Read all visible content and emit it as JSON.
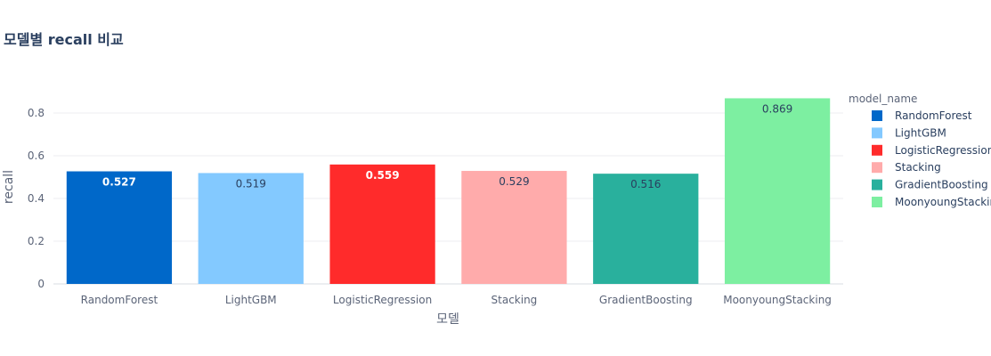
{
  "chart_data": {
    "type": "bar",
    "title": "모델별 recall 비교",
    "xlabel": "모델",
    "ylabel": "recall",
    "categories": [
      "RandomForest",
      "LightGBM",
      "LogisticRegression",
      "Stacking",
      "GradientBoosting",
      "MoonyoungStacking"
    ],
    "values": [
      0.527,
      0.519,
      0.559,
      0.529,
      0.516,
      0.869
    ],
    "data_labels": [
      "0.527",
      "0.519",
      "0.559",
      "0.529",
      "0.516",
      "0.869"
    ],
    "colors": [
      "#0068c9",
      "#83c9ff",
      "#ff2b2b",
      "#ffabab",
      "#29b09d",
      "#7defa1"
    ],
    "label_colors": [
      "#ffffff",
      "#2a3f5f",
      "#ffffff",
      "#2a3f5f",
      "#2a3f5f",
      "#2a3f5f"
    ],
    "yticks": [
      "0",
      "0.2",
      "0.4",
      "0.6",
      "0.8"
    ],
    "ylim": [
      0,
      0.915
    ],
    "grid": true,
    "legend": {
      "title": "model_name",
      "position": "right",
      "entries": [
        "RandomForest",
        "LightGBM",
        "LogisticRegression",
        "Stacking",
        "GradientBoosting",
        "MoonyoungStackin"
      ]
    }
  }
}
